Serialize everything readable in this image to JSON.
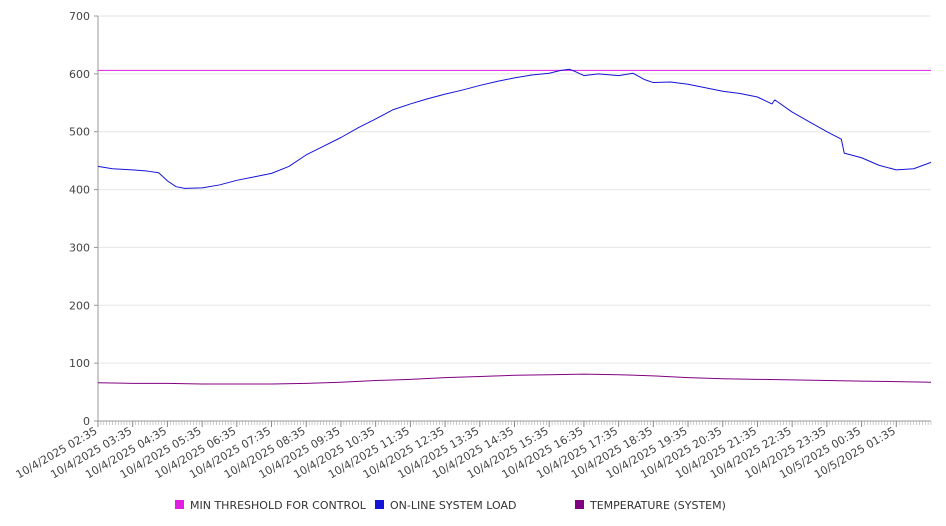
{
  "chart_data": {
    "type": "line",
    "title": "",
    "xlabel": "",
    "ylabel": "",
    "ylim": [
      0,
      700
    ],
    "y_ticks": [
      0,
      100,
      200,
      300,
      400,
      500,
      600,
      700
    ],
    "grid": "horizontal",
    "legend_position": "bottom",
    "x_ticks": [
      "10/4/2025 02:35",
      "10/4/2025 03:35",
      "10/4/2025 04:35",
      "10/4/2025 05:35",
      "10/4/2025 06:35",
      "10/4/2025 07:35",
      "10/4/2025 08:35",
      "10/4/2025 09:35",
      "10/4/2025 10:35",
      "10/4/2025 11:35",
      "10/4/2025 12:35",
      "10/4/2025 13:35",
      "10/4/2025 14:35",
      "10/4/2025 15:35",
      "10/4/2025 16:35",
      "10/4/2025 17:35",
      "10/4/2025 18:35",
      "10/4/2025 19:35",
      "10/4/2025 20:35",
      "10/4/2025 21:35",
      "10/4/2025 22:35",
      "10/4/2025 23:35",
      "10/5/2025 00:35",
      "10/5/2025 01:35"
    ],
    "x_range": [
      "10/4/2025 02:35",
      "10/5/2025 02:35"
    ],
    "series": [
      {
        "name": "MIN THRESHOLD FOR CONTROL",
        "color": "#e020e0",
        "x": [
          "10/4/2025 02:35",
          "10/5/2025 02:35"
        ],
        "y": [
          606,
          606
        ]
      },
      {
        "name": "ON-LINE SYSTEM LOAD",
        "color": "#1414d8",
        "x": [
          "10/4/2025 02:35",
          "10/4/2025 03:00",
          "10/4/2025 03:35",
          "10/4/2025 04:00",
          "10/4/2025 04:20",
          "10/4/2025 04:35",
          "10/4/2025 04:50",
          "10/4/2025 05:05",
          "10/4/2025 05:35",
          "10/4/2025 06:05",
          "10/4/2025 06:35",
          "10/4/2025 07:05",
          "10/4/2025 07:35",
          "10/4/2025 08:05",
          "10/4/2025 08:35",
          "10/4/2025 09:05",
          "10/4/2025 09:35",
          "10/4/2025 10:05",
          "10/4/2025 10:35",
          "10/4/2025 11:05",
          "10/4/2025 11:35",
          "10/4/2025 12:05",
          "10/4/2025 12:35",
          "10/4/2025 13:05",
          "10/4/2025 13:35",
          "10/4/2025 14:05",
          "10/4/2025 14:35",
          "10/4/2025 15:05",
          "10/4/2025 15:35",
          "10/4/2025 15:55",
          "10/4/2025 16:10",
          "10/4/2025 16:20",
          "10/4/2025 16:35",
          "10/4/2025 17:00",
          "10/4/2025 17:35",
          "10/4/2025 18:00",
          "10/4/2025 18:20",
          "10/4/2025 18:35",
          "10/4/2025 19:05",
          "10/4/2025 19:35",
          "10/4/2025 20:05",
          "10/4/2025 20:35",
          "10/4/2025 21:05",
          "10/4/2025 21:35",
          "10/4/2025 22:00",
          "10/4/2025 22:05",
          "10/4/2025 22:35",
          "10/4/2025 23:05",
          "10/4/2025 23:35",
          "10/5/2025 00:00",
          "10/5/2025 00:05",
          "10/5/2025 00:35",
          "10/5/2025 01:05",
          "10/5/2025 01:35",
          "10/5/2025 02:05",
          "10/5/2025 02:35"
        ],
        "y": [
          440,
          436,
          434,
          432,
          429,
          415,
          405,
          402,
          403,
          408,
          416,
          422,
          428,
          440,
          460,
          475,
          490,
          507,
          522,
          538,
          548,
          557,
          565,
          572,
          580,
          587,
          593,
          598,
          601,
          606,
          608,
          604,
          597,
          600,
          597,
          601,
          590,
          585,
          586,
          582,
          576,
          570,
          566,
          560,
          548,
          555,
          534,
          517,
          500,
          487,
          463,
          455,
          442,
          434,
          436,
          447
        ]
      },
      {
        "name": "TEMPERATURE (SYSTEM)",
        "color": "#800080",
        "x": [
          "10/4/2025 02:35",
          "10/4/2025 03:35",
          "10/4/2025 04:35",
          "10/4/2025 05:35",
          "10/4/2025 06:35",
          "10/4/2025 07:35",
          "10/4/2025 08:35",
          "10/4/2025 09:35",
          "10/4/2025 10:35",
          "10/4/2025 11:35",
          "10/4/2025 12:35",
          "10/4/2025 13:35",
          "10/4/2025 14:35",
          "10/4/2025 15:35",
          "10/4/2025 16:35",
          "10/4/2025 17:35",
          "10/4/2025 18:35",
          "10/4/2025 19:35",
          "10/4/2025 20:35",
          "10/4/2025 21:35",
          "10/4/2025 22:35",
          "10/4/2025 23:35",
          "10/5/2025 00:35",
          "10/5/2025 01:35",
          "10/5/2025 02:35"
        ],
        "y": [
          66,
          65,
          65,
          64,
          64,
          64,
          65,
          67,
          70,
          72,
          75,
          77,
          79,
          80,
          81,
          80,
          78,
          75,
          73,
          72,
          71,
          70,
          69,
          68,
          67
        ]
      }
    ]
  }
}
